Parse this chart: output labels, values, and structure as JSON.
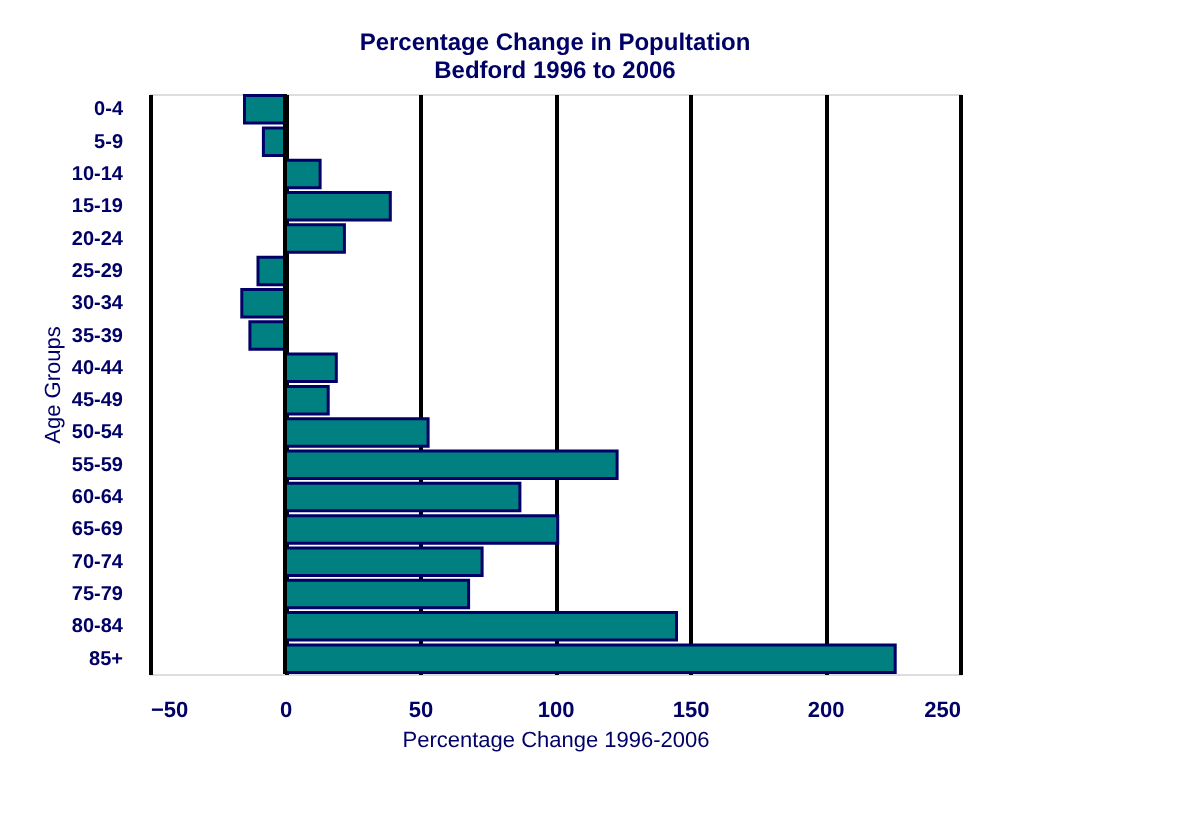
{
  "chart_data": {
    "type": "bar",
    "orientation": "horizontal",
    "title": "Percentage Change in Popultation\nBedford 1996 to 2006",
    "xlabel": "Percentage Change 1996-2006",
    "ylabel": "Age Groups",
    "categories": [
      "0-4",
      "5-9",
      "10-14",
      "15-19",
      "20-24",
      "25-29",
      "30-34",
      "35-39",
      "40-44",
      "45-49",
      "50-54",
      "55-59",
      "60-64",
      "65-69",
      "70-74",
      "75-79",
      "80-84",
      "85+"
    ],
    "values": [
      -15,
      -8,
      13,
      39,
      22,
      -10,
      -16,
      -13,
      19,
      16,
      53,
      123,
      87,
      101,
      73,
      68,
      145,
      226
    ],
    "color": "#008080",
    "xlim": [
      -50,
      250
    ],
    "xticks": [
      -50,
      0,
      50,
      100,
      150,
      200,
      250
    ],
    "grid": "x"
  }
}
